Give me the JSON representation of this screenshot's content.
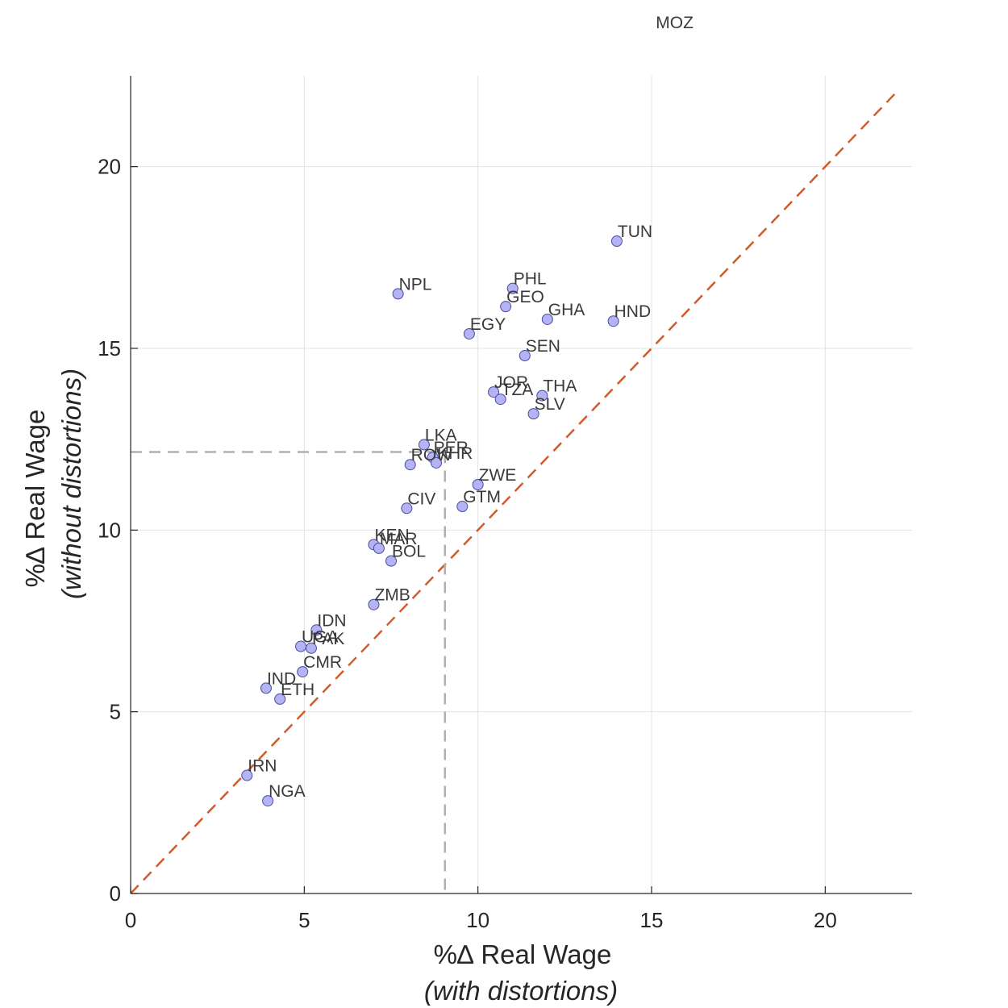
{
  "chart_data": {
    "type": "scatter",
    "xlabel": "%∆ Real Wage",
    "xlabel_sub": "(with distortions)",
    "ylabel": "%∆ Real Wage",
    "ylabel_sub": "(without distortions)",
    "xlim": [
      0,
      22.5
    ],
    "ylim": [
      0,
      22.5
    ],
    "xticks": [
      0,
      5,
      10,
      15,
      20
    ],
    "yticks": [
      0,
      5,
      10,
      15,
      20
    ],
    "grid": true,
    "marker_color": "#b3b3f5",
    "marker_edge": "#4a4aa0",
    "reference_line": {
      "from": [
        0,
        0
      ],
      "to": [
        22,
        22
      ],
      "color": "#d15b2a",
      "style": "dashed"
    },
    "median_lines": {
      "x": 9.05,
      "y": 12.15,
      "color": "#b0b0b0",
      "style": "dashed"
    },
    "points": [
      {
        "label": "MOZ",
        "x": 15.1,
        "y": 23.7
      },
      {
        "label": "TUN",
        "x": 14.0,
        "y": 17.95
      },
      {
        "label": "NPL",
        "x": 7.7,
        "y": 16.5
      },
      {
        "label": "PHL",
        "x": 11.0,
        "y": 16.65
      },
      {
        "label": "GEO",
        "x": 10.8,
        "y": 16.15
      },
      {
        "label": "GHA",
        "x": 12.0,
        "y": 15.8
      },
      {
        "label": "HND",
        "x": 13.9,
        "y": 15.75
      },
      {
        "label": "EGY",
        "x": 9.75,
        "y": 15.4
      },
      {
        "label": "SEN",
        "x": 11.35,
        "y": 14.8
      },
      {
        "label": "JOR",
        "x": 10.45,
        "y": 13.8
      },
      {
        "label": "TZA",
        "x": 10.65,
        "y": 13.6
      },
      {
        "label": "THA",
        "x": 11.85,
        "y": 13.7
      },
      {
        "label": "SLV",
        "x": 11.6,
        "y": 13.2
      },
      {
        "label": "LKA",
        "x": 8.45,
        "y": 12.35
      },
      {
        "label": "PER",
        "x": 8.7,
        "y": 12.0
      },
      {
        "label": "KHR",
        "x": 8.8,
        "y": 11.85
      },
      {
        "label": "ROW",
        "x": 8.05,
        "y": 11.8
      },
      {
        "label": "ZWE",
        "x": 10.0,
        "y": 11.25
      },
      {
        "label": "CIV",
        "x": 7.95,
        "y": 10.6
      },
      {
        "label": "GTM",
        "x": 9.55,
        "y": 10.65
      },
      {
        "label": "KEN",
        "x": 7.0,
        "y": 9.6
      },
      {
        "label": "MAR",
        "x": 7.15,
        "y": 9.5
      },
      {
        "label": "BOL",
        "x": 7.5,
        "y": 9.15
      },
      {
        "label": "ZMB",
        "x": 7.0,
        "y": 7.95
      },
      {
        "label": "IDN",
        "x": 5.35,
        "y": 7.25
      },
      {
        "label": "UGA",
        "x": 4.9,
        "y": 6.8
      },
      {
        "label": "PAK",
        "x": 5.2,
        "y": 6.75
      },
      {
        "label": "CMR",
        "x": 4.95,
        "y": 6.1
      },
      {
        "label": "IND",
        "x": 3.9,
        "y": 5.65
      },
      {
        "label": "ETH",
        "x": 4.3,
        "y": 5.35
      },
      {
        "label": "IRN",
        "x": 3.35,
        "y": 3.25
      },
      {
        "label": "NGA",
        "x": 3.95,
        "y": 2.55
      }
    ]
  }
}
